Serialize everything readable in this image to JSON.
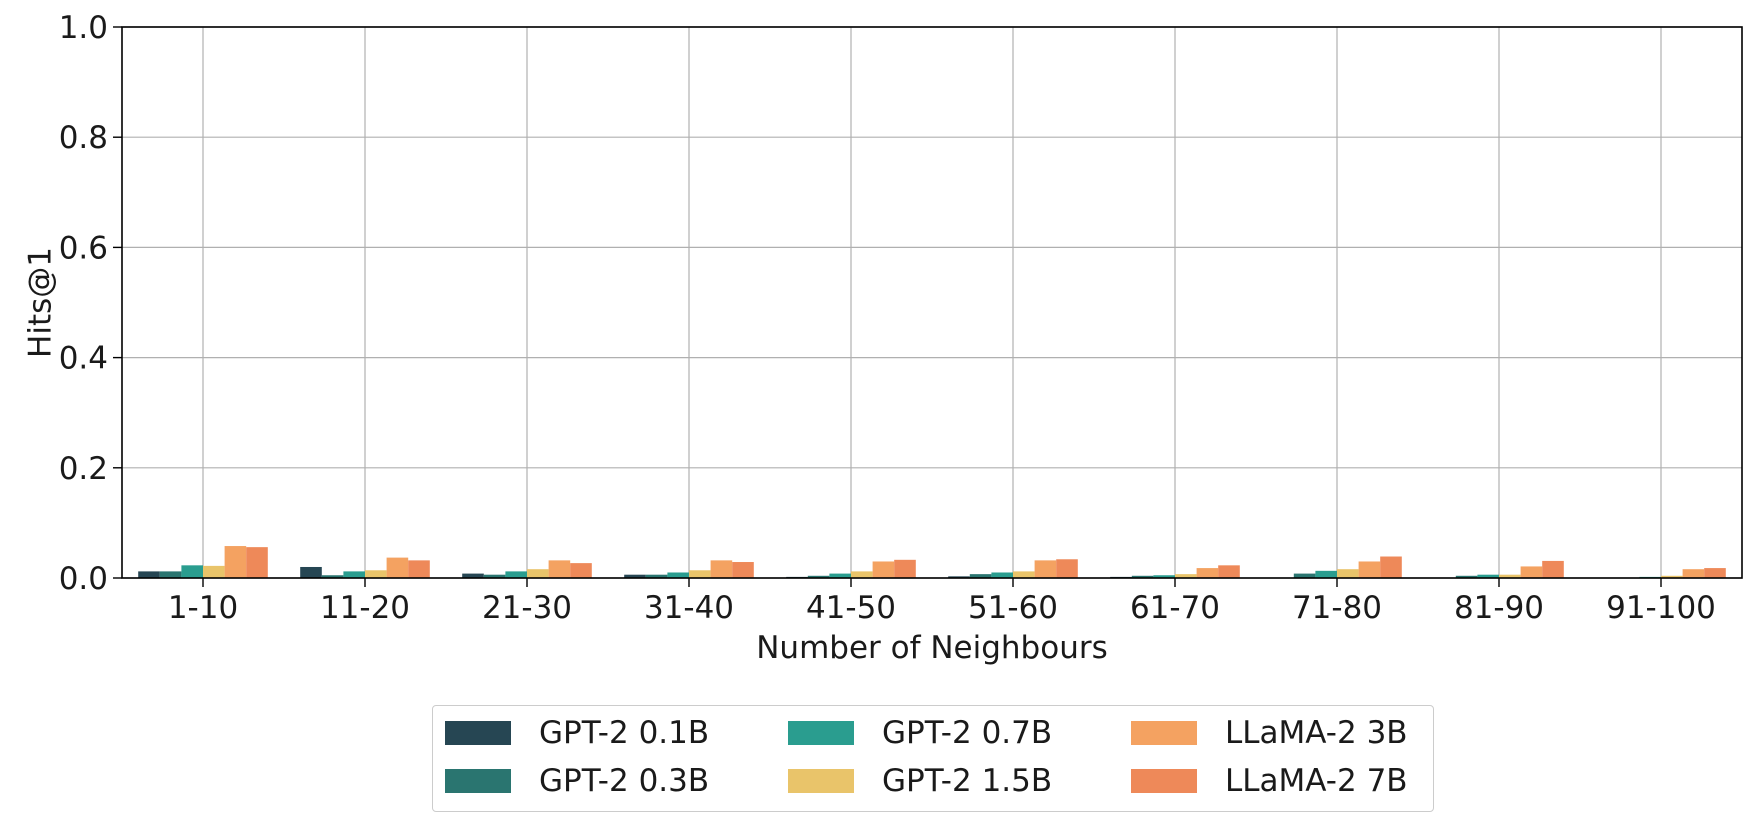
{
  "chart_data": {
    "type": "bar",
    "title": "",
    "xlabel": "Number of Neighbours",
    "ylabel": "Hits@1",
    "ylim": [
      0,
      1.0
    ],
    "yticks": [
      "0.0",
      "0.2",
      "0.4",
      "0.6",
      "0.8",
      "1.0"
    ],
    "grid": true,
    "legend_position": "bottom-center",
    "categories": [
      "1-10",
      "11-20",
      "21-30",
      "31-40",
      "41-50",
      "51-60",
      "61-70",
      "71-80",
      "81-90",
      "91-100"
    ],
    "series": [
      {
        "name": "GPT-2 0.1B",
        "color": "#264653",
        "values": [
          0.012,
          0.02,
          0.008,
          0.006,
          0.002,
          0.003,
          0.002,
          0.0,
          0.0,
          0.0
        ]
      },
      {
        "name": "GPT-2 0.3B",
        "color": "#2a7570",
        "values": [
          0.012,
          0.005,
          0.006,
          0.006,
          0.004,
          0.007,
          0.004,
          0.008,
          0.004,
          0.0
        ]
      },
      {
        "name": "GPT-2 0.7B",
        "color": "#2a9d8f",
        "values": [
          0.023,
          0.012,
          0.012,
          0.01,
          0.008,
          0.01,
          0.005,
          0.013,
          0.006,
          0.002
        ]
      },
      {
        "name": "GPT-2 1.5B",
        "color": "#e9c46a",
        "values": [
          0.022,
          0.014,
          0.016,
          0.014,
          0.012,
          0.012,
          0.007,
          0.016,
          0.006,
          0.004
        ]
      },
      {
        "name": "LLaMA-2 3B",
        "color": "#f4a261",
        "values": [
          0.058,
          0.037,
          0.032,
          0.032,
          0.03,
          0.032,
          0.018,
          0.03,
          0.021,
          0.016
        ]
      },
      {
        "name": "LLaMA-2 7B",
        "color": "#ee8959",
        "values": [
          0.056,
          0.032,
          0.027,
          0.029,
          0.033,
          0.034,
          0.023,
          0.039,
          0.031,
          0.018
        ]
      }
    ]
  }
}
